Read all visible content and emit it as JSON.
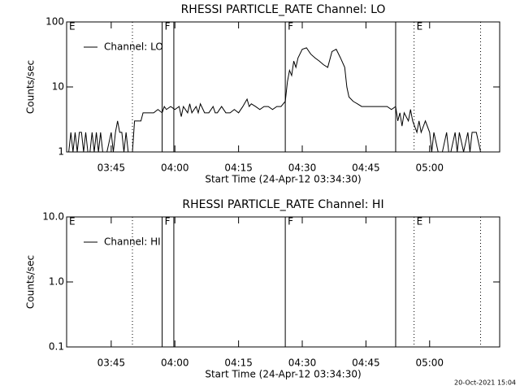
{
  "chart_data": [
    {
      "type": "line",
      "title": "RHESSI PARTICLE_RATE Channel: LO",
      "ylabel": "Counts/sec",
      "xlabel": "Start Time (24-Apr-12 03:34:30)",
      "log_y": true,
      "ylim": [
        1,
        100
      ],
      "yticks": [
        1,
        10,
        100
      ],
      "xlim": [
        "03:34:30",
        "05:16:30"
      ],
      "xticks": [
        "03:45",
        "04:00",
        "04:15",
        "04:30",
        "04:45",
        "05:00"
      ],
      "legend": "upper left",
      "vlines": [
        {
          "x": "03:50",
          "style": "dotted"
        },
        {
          "x": "03:57",
          "style": "solid"
        },
        {
          "x": "03:59:45",
          "style": "solid"
        },
        {
          "x": "04:26",
          "style": "solid"
        },
        {
          "x": "04:52",
          "style": "solid"
        },
        {
          "x": "04:56:20",
          "style": "dotted"
        },
        {
          "x": "05:12",
          "style": "dotted"
        }
      ],
      "flags": [
        {
          "x": "03:34:30",
          "label": "E"
        },
        {
          "x": "03:57",
          "label": "F"
        },
        {
          "x": "04:26",
          "label": "F"
        },
        {
          "x": "04:56:20",
          "label": "E"
        }
      ],
      "series": [
        {
          "name": "Channel: LO",
          "color": "#000000",
          "x": [
            "03:35",
            "03:35:30",
            "03:36",
            "03:36:30",
            "03:37",
            "03:37:30",
            "03:38",
            "03:38:30",
            "03:39",
            "03:39:30",
            "03:40",
            "03:40:30",
            "03:41",
            "03:41:30",
            "03:42",
            "03:42:30",
            "03:43",
            "03:44",
            "03:45",
            "03:45:30",
            "03:46",
            "03:46:30",
            "03:47",
            "03:47:30",
            "03:48",
            "03:48:30",
            "03:49",
            "03:50",
            "03:50:30",
            "03:51",
            "03:52",
            "03:52:30",
            "03:54",
            "03:55",
            "03:56",
            "03:57",
            "03:57:30",
            "03:58",
            "03:59",
            "04:00",
            "04:01",
            "04:01:30",
            "04:02",
            "04:03",
            "04:03:30",
            "04:04",
            "04:05",
            "04:05:30",
            "04:06",
            "04:07",
            "04:08",
            "04:09",
            "04:09:30",
            "04:10",
            "04:11",
            "04:12",
            "04:13",
            "04:14",
            "04:15",
            "04:16",
            "04:17",
            "04:17:30",
            "04:18",
            "04:19",
            "04:20",
            "04:21",
            "04:22",
            "04:23",
            "04:24",
            "04:25",
            "04:26",
            "04:26:30",
            "04:27",
            "04:27:30",
            "04:28",
            "04:28:30",
            "04:29",
            "04:30",
            "04:31",
            "04:32",
            "04:33",
            "04:34",
            "04:35",
            "04:36",
            "04:37",
            "04:38",
            "04:39",
            "04:40",
            "04:40:30",
            "04:41",
            "04:42",
            "04:43",
            "04:44",
            "04:46",
            "04:48",
            "04:50",
            "04:51",
            "04:52",
            "04:52:30",
            "04:53",
            "04:53:30",
            "04:54",
            "04:55",
            "04:55:30",
            "04:56",
            "04:57",
            "04:57:30",
            "04:58",
            "04:59",
            "05:00",
            "05:00:30",
            "05:01",
            "05:02",
            "05:03",
            "05:04",
            "05:04:30",
            "05:05",
            "05:06",
            "05:06:30",
            "05:07",
            "05:08",
            "05:09",
            "05:09:30",
            "05:10",
            "05:11",
            "05:12"
          ],
          "values": [
            1,
            2,
            1,
            2,
            1,
            2,
            2,
            1,
            2,
            1,
            1,
            2,
            1,
            2,
            1,
            2,
            1,
            1,
            2,
            1,
            2,
            3,
            2,
            2,
            1,
            2,
            1,
            1,
            3,
            3,
            3,
            4,
            4,
            4,
            4.5,
            4,
            5,
            4.5,
            5,
            4.5,
            5,
            3.5,
            5,
            4,
            5.5,
            4,
            5,
            4,
            5.5,
            4,
            4,
            5,
            4,
            4,
            5,
            4,
            4,
            4.5,
            4,
            5,
            6.5,
            5,
            5.5,
            5,
            4.5,
            5,
            5,
            4.5,
            5,
            5,
            6,
            12,
            18,
            15,
            25,
            20,
            28,
            38,
            40,
            32,
            28,
            25,
            22,
            20,
            35,
            38,
            28,
            20,
            10,
            7,
            6,
            5.5,
            5,
            5,
            5,
            5,
            4.5,
            5,
            3,
            4,
            2.5,
            4,
            3,
            4.5,
            3,
            2,
            3,
            2,
            3,
            2,
            1,
            2,
            1,
            1,
            2,
            1,
            1,
            2,
            1,
            2,
            1,
            2,
            1,
            2,
            2,
            1
          ]
        }
      ]
    },
    {
      "type": "line",
      "title": "RHESSI PARTICLE_RATE Channel: HI",
      "ylabel": "Counts/sec",
      "xlabel": "Start Time (24-Apr-12 03:34:30)",
      "log_y": true,
      "ylim": [
        0.1,
        10
      ],
      "yticks": [
        0.1,
        {
          "value": 1,
          "label": "1.0"
        },
        {
          "value": 10,
          "label": "10.0"
        }
      ],
      "xlim": [
        "03:34:30",
        "05:16:30"
      ],
      "xticks": [
        "03:45",
        "04:00",
        "04:15",
        "04:30",
        "04:45",
        "05:00"
      ],
      "legend": "upper left",
      "vlines": [
        {
          "x": "03:50",
          "style": "dotted"
        },
        {
          "x": "03:57",
          "style": "solid"
        },
        {
          "x": "03:59:45",
          "style": "solid"
        },
        {
          "x": "04:26",
          "style": "solid"
        },
        {
          "x": "04:52",
          "style": "solid"
        },
        {
          "x": "04:56:20",
          "style": "dotted"
        },
        {
          "x": "05:12",
          "style": "dotted"
        }
      ],
      "flags": [
        {
          "x": "03:34:30",
          "label": "E"
        },
        {
          "x": "03:57",
          "label": "F"
        },
        {
          "x": "04:26",
          "label": "F"
        },
        {
          "x": "04:56:20",
          "label": "E"
        }
      ],
      "series": [
        {
          "name": "Channel: HI",
          "color": "#000000",
          "x": [],
          "values": []
        }
      ]
    }
  ],
  "footer": "20-Oct-2021 15:04"
}
